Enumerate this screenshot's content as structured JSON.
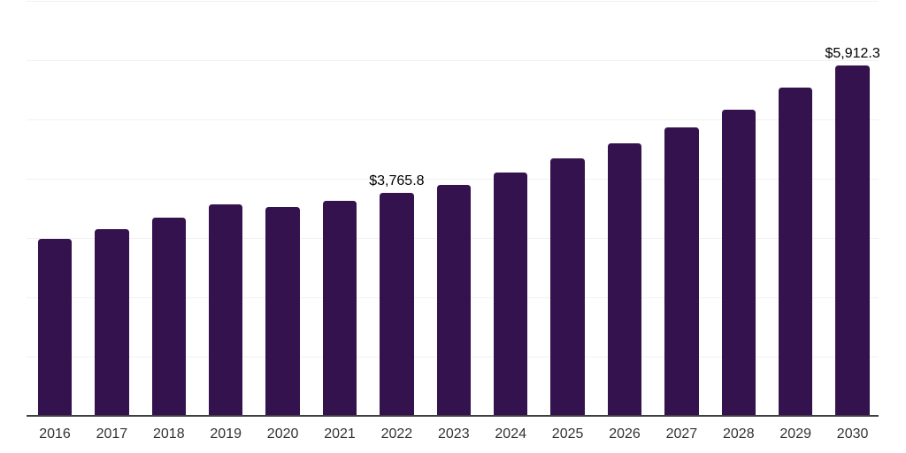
{
  "chart_data": {
    "type": "bar",
    "title": "",
    "xlabel": "",
    "ylabel": "",
    "categories": [
      "2016",
      "2017",
      "2018",
      "2019",
      "2020",
      "2021",
      "2022",
      "2023",
      "2024",
      "2025",
      "2026",
      "2027",
      "2028",
      "2029",
      "2030"
    ],
    "values": [
      2990,
      3155,
      3350,
      3560,
      3515,
      3630,
      3765.8,
      3900,
      4110,
      4340,
      4590,
      4870,
      5160,
      5535,
      5912.3
    ],
    "value_labels": [
      {
        "category": "2022",
        "text": "$3,765.8"
      },
      {
        "category": "2030",
        "text": "$5,912.3"
      }
    ],
    "ylim": [
      0,
      7000
    ],
    "gridline_step": 1000,
    "grid": "horizontal-only",
    "legend": "none",
    "y_axis_tick_labels": "none",
    "colors": {
      "bar": "#34124d",
      "gridline": "#f1f1f1",
      "axis_line": "#404040",
      "tick_label": "#333333",
      "value_label": "#000000",
      "background": "#ffffff"
    }
  }
}
